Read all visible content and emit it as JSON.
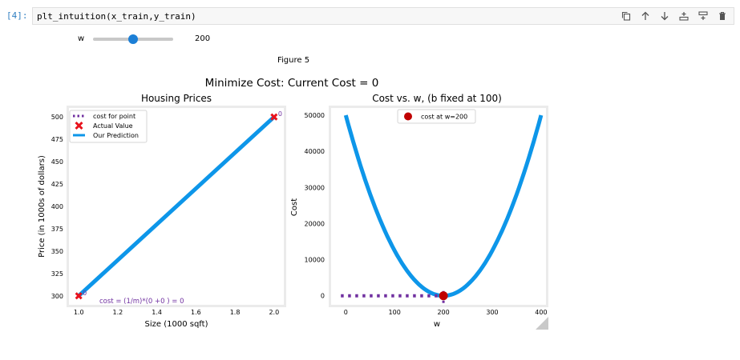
{
  "cell": {
    "prompt": "[4]:",
    "code": "plt_intuition(x_train,y_train)"
  },
  "toolbar": [
    {
      "name": "copy-icon"
    },
    {
      "name": "move-up-icon"
    },
    {
      "name": "move-down-icon"
    },
    {
      "name": "insert-above-icon"
    },
    {
      "name": "insert-below-icon"
    },
    {
      "name": "trash-icon"
    }
  ],
  "slider": {
    "label": "w",
    "value": "200",
    "min": 0,
    "max": 400,
    "fraction": 0.5
  },
  "figure": {
    "label": "Figure 5",
    "suptitle": "Minimize Cost: Current Cost = 0"
  },
  "colors": {
    "blue": "#0d96e9",
    "red": "#e8121d",
    "dark_red": "#c00000",
    "purple": "#7030a0",
    "prompt_blue": "#307fc1"
  },
  "chart_data": [
    {
      "type": "line",
      "title": "Housing Prices",
      "xlabel": "Size (1000 sqft)",
      "ylabel": "Price (in 1000s of dollars)",
      "xlim": [
        0.95,
        2.05
      ],
      "ylim": [
        290,
        510
      ],
      "xticks": [
        "1.0",
        "1.2",
        "1.4",
        "1.6",
        "1.8",
        "2.0"
      ],
      "yticks": [
        "300",
        "325",
        "350",
        "375",
        "400",
        "425",
        "450",
        "475",
        "500"
      ],
      "legend": [
        "cost for point",
        "Actual Value",
        "Our Prediction"
      ],
      "legend_position": "top-left",
      "actual_values": {
        "x": [
          1.0,
          2.0
        ],
        "y": [
          300,
          500
        ]
      },
      "prediction": {
        "x": [
          1.0,
          2.0
        ],
        "y": [
          300,
          500
        ]
      },
      "point_labels": [
        "0",
        "0"
      ],
      "annotation": "cost = (1/m)*(0 +0 ) = 0"
    },
    {
      "type": "line",
      "title": "Cost vs. w, (b fixed at 100)",
      "xlabel": "w",
      "ylabel": "Cost",
      "xlim": [
        -30,
        410
      ],
      "ylim": [
        -2500,
        52000
      ],
      "xticks": [
        "0",
        "100",
        "200",
        "300",
        "400"
      ],
      "yticks": [
        "0",
        "10000",
        "20000",
        "30000",
        "40000",
        "50000"
      ],
      "legend": [
        "cost at w=200"
      ],
      "legend_position": "top-center",
      "cost_curve": {
        "x": [
          0,
          50,
          100,
          150,
          200,
          250,
          300,
          350,
          400
        ],
        "y": [
          50000,
          28125,
          12500,
          3125,
          0,
          3125,
          12500,
          28125,
          50000
        ]
      },
      "current_point": {
        "x": 200,
        "y": 0
      },
      "dotted_line": {
        "x": [
          -10,
          200
        ],
        "y": [
          0,
          0
        ]
      }
    }
  ]
}
